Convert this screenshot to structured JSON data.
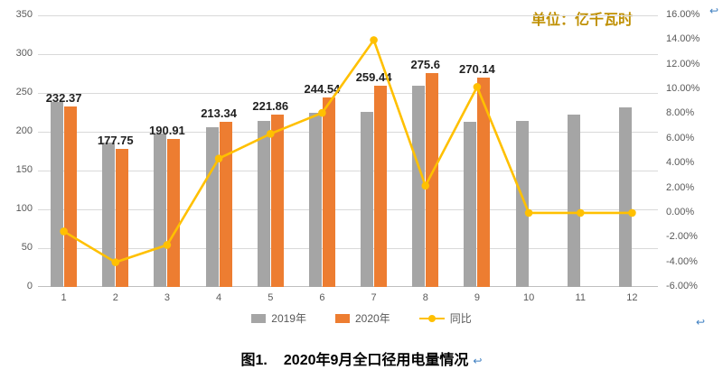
{
  "page": {
    "paragraph_mark": "↩",
    "unit_label": "单位：亿千瓦时",
    "caption": {
      "prefix": "图1.",
      "text": "2020年9月全口径用电量情况"
    }
  },
  "colors": {
    "bar_2019": "#A5A5A5",
    "bar_2020": "#ED7D31",
    "line_yoy": "#FFC000",
    "axis_text": "#595959",
    "gridline": "#D9D9D9",
    "unit_label_text": "#BF8F00",
    "paragraph_mark": "#3E7FC1"
  },
  "chart_data": {
    "type": "bar",
    "subtype": "bar-line-combo",
    "title": "图1. 2020年9月全口径用电量情况",
    "unit": "亿千瓦时",
    "grid": true,
    "legend_position": "bottom",
    "categories": [
      "1",
      "2",
      "3",
      "4",
      "5",
      "6",
      "7",
      "8",
      "9",
      "10",
      "11",
      "12"
    ],
    "series": [
      {
        "name": "2019年",
        "type": "bar",
        "axis": "left",
        "color": "#A5A5A5",
        "values": [
          238,
          186,
          198,
          206,
          214,
          225,
          226,
          259,
          213,
          214,
          222,
          231
        ]
      },
      {
        "name": "2020年",
        "type": "bar",
        "axis": "left",
        "color": "#ED7D31",
        "values": [
          232.37,
          177.75,
          190.91,
          213.34,
          221.86,
          244.54,
          259.44,
          275.6,
          270.14,
          null,
          null,
          null
        ],
        "data_labels": [
          "232.37",
          "177.75",
          "190.91",
          "213.34",
          "221.86",
          "244.54",
          "259.44",
          "275.6",
          "270.14",
          "",
          "",
          ""
        ]
      },
      {
        "name": "同比",
        "type": "line",
        "axis": "right",
        "color": "#FFC000",
        "values": [
          -1.5,
          -4.0,
          -2.6,
          4.4,
          6.4,
          8.1,
          14.0,
          2.2,
          10.2,
          0.0,
          0.0,
          0.0
        ]
      }
    ],
    "left_axis": {
      "min": 0,
      "max": 350,
      "step": 50,
      "ticks": [
        "0",
        "50",
        "100",
        "150",
        "200",
        "250",
        "300",
        "350"
      ]
    },
    "right_axis": {
      "min": -6,
      "max": 16,
      "step": 2,
      "ticks": [
        "-6.00%",
        "-4.00%",
        "-2.00%",
        "0.00%",
        "2.00%",
        "4.00%",
        "6.00%",
        "8.00%",
        "10.00%",
        "12.00%",
        "14.00%",
        "16.00%"
      ]
    },
    "legend": [
      {
        "label": "2019年",
        "swatch": "bar",
        "color": "#A5A5A5"
      },
      {
        "label": "2020年",
        "swatch": "bar",
        "color": "#ED7D31"
      },
      {
        "label": "同比",
        "swatch": "line",
        "color": "#FFC000"
      }
    ]
  }
}
